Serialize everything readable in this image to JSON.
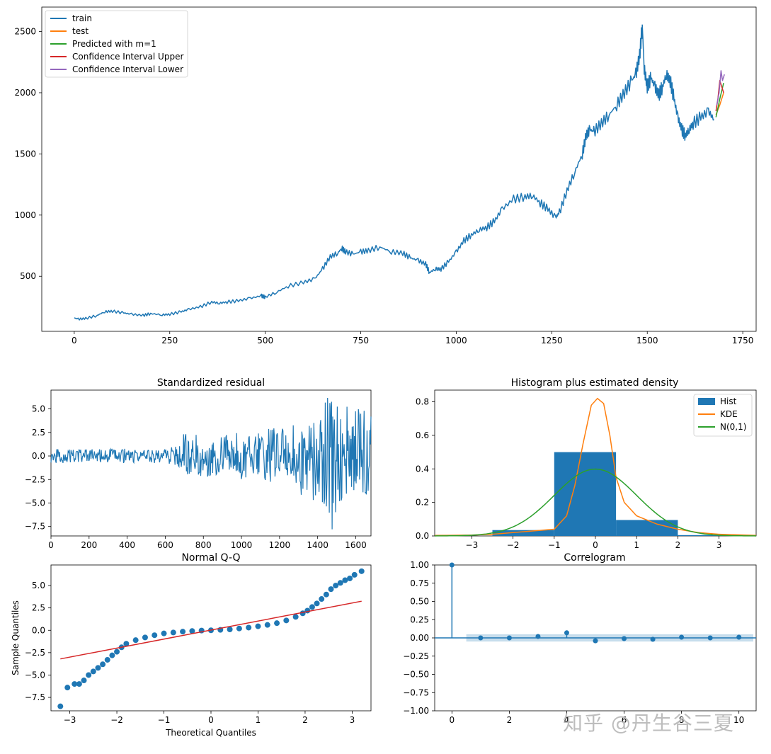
{
  "watermark": "知乎 @丹生谷三夏",
  "colors": {
    "blue": "#1f77b4",
    "orange": "#ff7f0e",
    "green": "#2ca02c",
    "red": "#d62728",
    "purple": "#9467bd"
  },
  "chart_data": [
    {
      "type": "line",
      "title": "",
      "xlabel": "",
      "ylabel": "",
      "xlim": [
        -85,
        1785
      ],
      "ylim": [
        50,
        2700
      ],
      "xticks": [
        0,
        250,
        500,
        750,
        1000,
        1250,
        1500,
        1750
      ],
      "xtick_labels": [
        "0",
        "250",
        "500",
        "750",
        "1000",
        "1250",
        "1500",
        "1750"
      ],
      "yticks": [
        500,
        1000,
        1500,
        2000,
        2500
      ],
      "ytick_labels": [
        "500",
        "1000",
        "1500",
        "2000",
        "2500"
      ],
      "legend": "top-left",
      "series": [
        {
          "name": "train",
          "color": "#1f77b4",
          "x": [
            0,
            10,
            30,
            60,
            80,
            100,
            130,
            150,
            180,
            200,
            230,
            250,
            280,
            300,
            330,
            360,
            380,
            400,
            430,
            460,
            490,
            500,
            530,
            560,
            600,
            630,
            650,
            670,
            690,
            700,
            710,
            730,
            750,
            770,
            800,
            830,
            860,
            880,
            900,
            920,
            930,
            945,
            960,
            980,
            1000,
            1020,
            1040,
            1060,
            1080,
            1100,
            1120,
            1150,
            1180,
            1200,
            1220,
            1240,
            1260,
            1270,
            1290,
            1310,
            1330,
            1340,
            1350,
            1360,
            1380,
            1400,
            1420,
            1440,
            1460,
            1470,
            1480,
            1487,
            1492,
            1500,
            1510,
            1520,
            1530,
            1540,
            1550,
            1560,
            1570,
            1580,
            1590,
            1600,
            1610,
            1620,
            1640,
            1660,
            1675
          ],
          "y": [
            160,
            150,
            155,
            180,
            210,
            215,
            200,
            190,
            180,
            195,
            185,
            190,
            210,
            230,
            250,
            290,
            280,
            290,
            300,
            320,
            340,
            330,
            370,
            420,
            450,
            480,
            560,
            660,
            690,
            730,
            700,
            680,
            700,
            710,
            740,
            700,
            690,
            650,
            630,
            600,
            530,
            560,
            560,
            620,
            700,
            790,
            840,
            880,
            900,
            950,
            1050,
            1130,
            1150,
            1160,
            1100,
            1050,
            980,
            1020,
            1200,
            1350,
            1500,
            1650,
            1700,
            1680,
            1750,
            1820,
            1900,
            2000,
            2100,
            2150,
            2300,
            2550,
            2200,
            2050,
            2120,
            2050,
            1980,
            2050,
            2150,
            2100,
            1950,
            1800,
            1700,
            1650,
            1700,
            1750,
            1800,
            1850,
            1780
          ]
        },
        {
          "name": "test",
          "color": "#ff7f0e",
          "x": [
            1680,
            1690,
            1700
          ],
          "y": [
            1820,
            1900,
            2000
          ]
        },
        {
          "name": "Predicted with m=1",
          "color": "#2ca02c",
          "x": [
            1680,
            1690,
            1700
          ],
          "y": [
            1800,
            1950,
            2080
          ]
        },
        {
          "name": "Confidence Interval Upper",
          "color": "#d62728",
          "x": [
            1680,
            1685,
            1690,
            1695,
            1700
          ],
          "y": [
            1850,
            1950,
            2100,
            2050,
            2000
          ]
        },
        {
          "name": "Confidence Interval Lower",
          "color": "#9467bd",
          "x": [
            1682,
            1688,
            1693,
            1697,
            1702
          ],
          "y": [
            1900,
            2000,
            2180,
            2100,
            2150
          ]
        }
      ]
    },
    {
      "type": "line",
      "title": "Standardized residual",
      "xlim": [
        0,
        1680
      ],
      "ylim": [
        -8.5,
        7
      ],
      "xticks": [
        0,
        200,
        400,
        600,
        800,
        1000,
        1200,
        1400,
        1600
      ],
      "xtick_labels": [
        "0",
        "200",
        "400",
        "600",
        "800",
        "1000",
        "1200",
        "1400",
        "1600"
      ],
      "yticks": [
        -7.5,
        -5.0,
        -2.5,
        0.0,
        2.5,
        5.0
      ],
      "ytick_labels": [
        "−7.5",
        "−5.0",
        "−2.5",
        "0.0",
        "2.5",
        "5.0"
      ],
      "series": [
        {
          "name": "residual",
          "color": "#1f77b4",
          "envelope_x": [
            0,
            100,
            200,
            300,
            400,
            500,
            600,
            650,
            700,
            800,
            900,
            1000,
            1100,
            1200,
            1300,
            1350,
            1400,
            1450,
            1480,
            1500,
            1550,
            1600,
            1650,
            1680
          ],
          "envelope_y": [
            0.7,
            0.8,
            0.7,
            0.8,
            0.8,
            0.7,
            0.8,
            1.0,
            2.5,
            2.2,
            2.4,
            2.5,
            2.8,
            3.0,
            3.5,
            4.0,
            4.5,
            6.5,
            6.0,
            5.5,
            5.5,
            5.2,
            5.0,
            4.5
          ],
          "envelope_low": [
            -0.7,
            -0.8,
            -0.7,
            -0.7,
            -0.8,
            -0.7,
            -0.8,
            -1.0,
            -2.0,
            -2.2,
            -2.3,
            -2.5,
            -2.6,
            -3.0,
            -3.5,
            -5.8,
            -4.5,
            -5.5,
            -8.5,
            -5.0,
            -4.5,
            -4.0,
            -4.5,
            -3.0
          ]
        }
      ]
    },
    {
      "type": "bar",
      "title": "Histogram plus estimated density",
      "xlim": [
        -3.9,
        3.9
      ],
      "ylim": [
        0,
        0.87
      ],
      "xticks": [
        -3,
        -2,
        -1,
        0,
        1,
        2,
        3
      ],
      "xtick_labels": [
        "−3",
        "−2",
        "−1",
        "0",
        "1",
        "2",
        "3"
      ],
      "yticks": [
        0.0,
        0.2,
        0.4,
        0.6,
        0.8
      ],
      "ytick_labels": [
        "0.0",
        "0.2",
        "0.4",
        "0.6",
        "0.8"
      ],
      "legend": "top-right",
      "bins": [
        {
          "from": -2.5,
          "to": -1.0,
          "value": 0.035
        },
        {
          "from": -1.0,
          "to": 0.5,
          "value": 0.5
        },
        {
          "from": 0.5,
          "to": 2.0,
          "value": 0.095
        },
        {
          "from": 2.0,
          "to": 3.5,
          "value": 0.005
        }
      ],
      "series": [
        {
          "name": "Hist",
          "color": "#1f77b4"
        },
        {
          "name": "KDE",
          "color": "#ff7f0e",
          "x": [
            -3.9,
            -3,
            -2.5,
            -2,
            -1.5,
            -1,
            -0.7,
            -0.5,
            -0.3,
            -0.1,
            0.05,
            0.2,
            0.35,
            0.5,
            0.7,
            1,
            1.5,
            2,
            2.5,
            3,
            3.9
          ],
          "y": [
            0.003,
            0.005,
            0.01,
            0.02,
            0.03,
            0.04,
            0.12,
            0.3,
            0.55,
            0.78,
            0.82,
            0.79,
            0.6,
            0.35,
            0.2,
            0.12,
            0.07,
            0.04,
            0.02,
            0.01,
            0.003
          ]
        },
        {
          "name": "N(0,1)",
          "color": "#2ca02c",
          "fn": "normal"
        }
      ]
    },
    {
      "type": "scatter",
      "title": "Normal Q-Q",
      "xlabel": "Theoretical Quantiles",
      "ylabel": "Sample Quantiles",
      "xlim": [
        -3.4,
        3.4
      ],
      "ylim": [
        -9,
        7.3
      ],
      "xticks": [
        -3,
        -2,
        -1,
        0,
        1,
        2,
        3
      ],
      "xtick_labels": [
        "−3",
        "−2",
        "−1",
        "0",
        "1",
        "2",
        "3"
      ],
      "yticks": [
        -7.5,
        -5.0,
        -2.5,
        0.0,
        2.5,
        5.0
      ],
      "ytick_labels": [
        "−7.5",
        "−5.0",
        "−2.5",
        "0.0",
        "2.5",
        "5.0"
      ],
      "reference_line": {
        "color": "#d62728",
        "x": [
          -3.2,
          3.2
        ],
        "y": [
          -3.2,
          3.25
        ]
      },
      "points": {
        "color": "#1f77b4",
        "x": [
          -3.2,
          -3.05,
          -2.9,
          -2.8,
          -2.7,
          -2.6,
          -2.5,
          -2.4,
          -2.3,
          -2.2,
          -2.1,
          -2.0,
          -1.9,
          -1.8,
          -1.6,
          -1.4,
          -1.2,
          -1.0,
          -0.8,
          -0.6,
          -0.4,
          -0.2,
          0.0,
          0.2,
          0.4,
          0.6,
          0.8,
          1.0,
          1.2,
          1.4,
          1.6,
          1.8,
          1.95,
          2.05,
          2.15,
          2.25,
          2.35,
          2.45,
          2.55,
          2.65,
          2.75,
          2.85,
          2.95,
          3.05,
          3.2
        ],
        "y": [
          -8.5,
          -6.4,
          -6.0,
          -6.0,
          -5.6,
          -5.0,
          -4.6,
          -4.2,
          -3.8,
          -3.3,
          -2.8,
          -2.4,
          -1.9,
          -1.5,
          -1.1,
          -0.8,
          -0.55,
          -0.35,
          -0.25,
          -0.15,
          -0.08,
          -0.03,
          0.0,
          0.05,
          0.1,
          0.2,
          0.3,
          0.45,
          0.6,
          0.8,
          1.1,
          1.5,
          1.9,
          2.2,
          2.6,
          3.0,
          3.5,
          4.0,
          4.6,
          5.0,
          5.3,
          5.6,
          5.8,
          6.2,
          6.6
        ]
      }
    },
    {
      "type": "bar",
      "title": "Correlogram",
      "xlim": [
        -0.6,
        10.6
      ],
      "ylim": [
        -1.0,
        1.0
      ],
      "xticks": [
        0,
        2,
        4,
        6,
        8,
        10
      ],
      "xtick_labels": [
        "0",
        "2",
        "4",
        "6",
        "8",
        "10"
      ],
      "yticks": [
        -1.0,
        -0.75,
        -0.5,
        -0.25,
        0.0,
        0.25,
        0.5,
        0.75,
        1.0
      ],
      "ytick_labels": [
        "−1.00",
        "−0.75",
        "−0.50",
        "−0.25",
        "0.00",
        "0.25",
        "0.50",
        "0.75",
        "1.00"
      ],
      "confidence_band": [
        -0.05,
        0.05
      ],
      "lags": [
        0,
        1,
        2,
        3,
        4,
        5,
        6,
        7,
        8,
        9,
        10
      ],
      "values": [
        1.0,
        0.0,
        0.0,
        0.02,
        0.07,
        -0.04,
        -0.01,
        -0.02,
        0.01,
        0.0,
        0.01
      ]
    }
  ]
}
